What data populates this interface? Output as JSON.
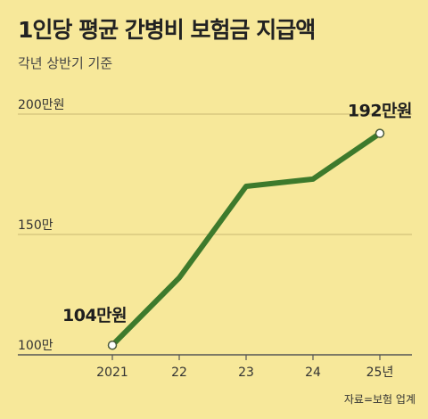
{
  "header": {
    "title": "1인당 평균 간병비 보험금 지급액",
    "subtitle": "각년 상반기 기준"
  },
  "footer": {
    "source": "자료=보험 업계"
  },
  "colors": {
    "background": "#f7e89a",
    "line": "#3d7a2c",
    "grid": "#c9b873",
    "marker_fill": "#ffffff"
  },
  "chart_data": {
    "type": "line",
    "title": "1인당 평균 간병비 보험금 지급액",
    "subtitle": "각년 상반기 기준",
    "categories": [
      "2021",
      "22",
      "23",
      "24",
      "25년"
    ],
    "series": [
      {
        "values": [
          104,
          132,
          170,
          173,
          192
        ]
      }
    ],
    "ylim": [
      100,
      200
    ],
    "y_ticks": [
      {
        "value": 200,
        "label": "200만원"
      },
      {
        "value": 150,
        "label": "150만"
      },
      {
        "value": 100,
        "label": "100만"
      }
    ],
    "annotations": [
      {
        "index": 0,
        "text": "104만원"
      },
      {
        "index": 4,
        "text": "192만원"
      }
    ],
    "markers_on": [
      0,
      4
    ],
    "grid": true,
    "legend": "none"
  }
}
